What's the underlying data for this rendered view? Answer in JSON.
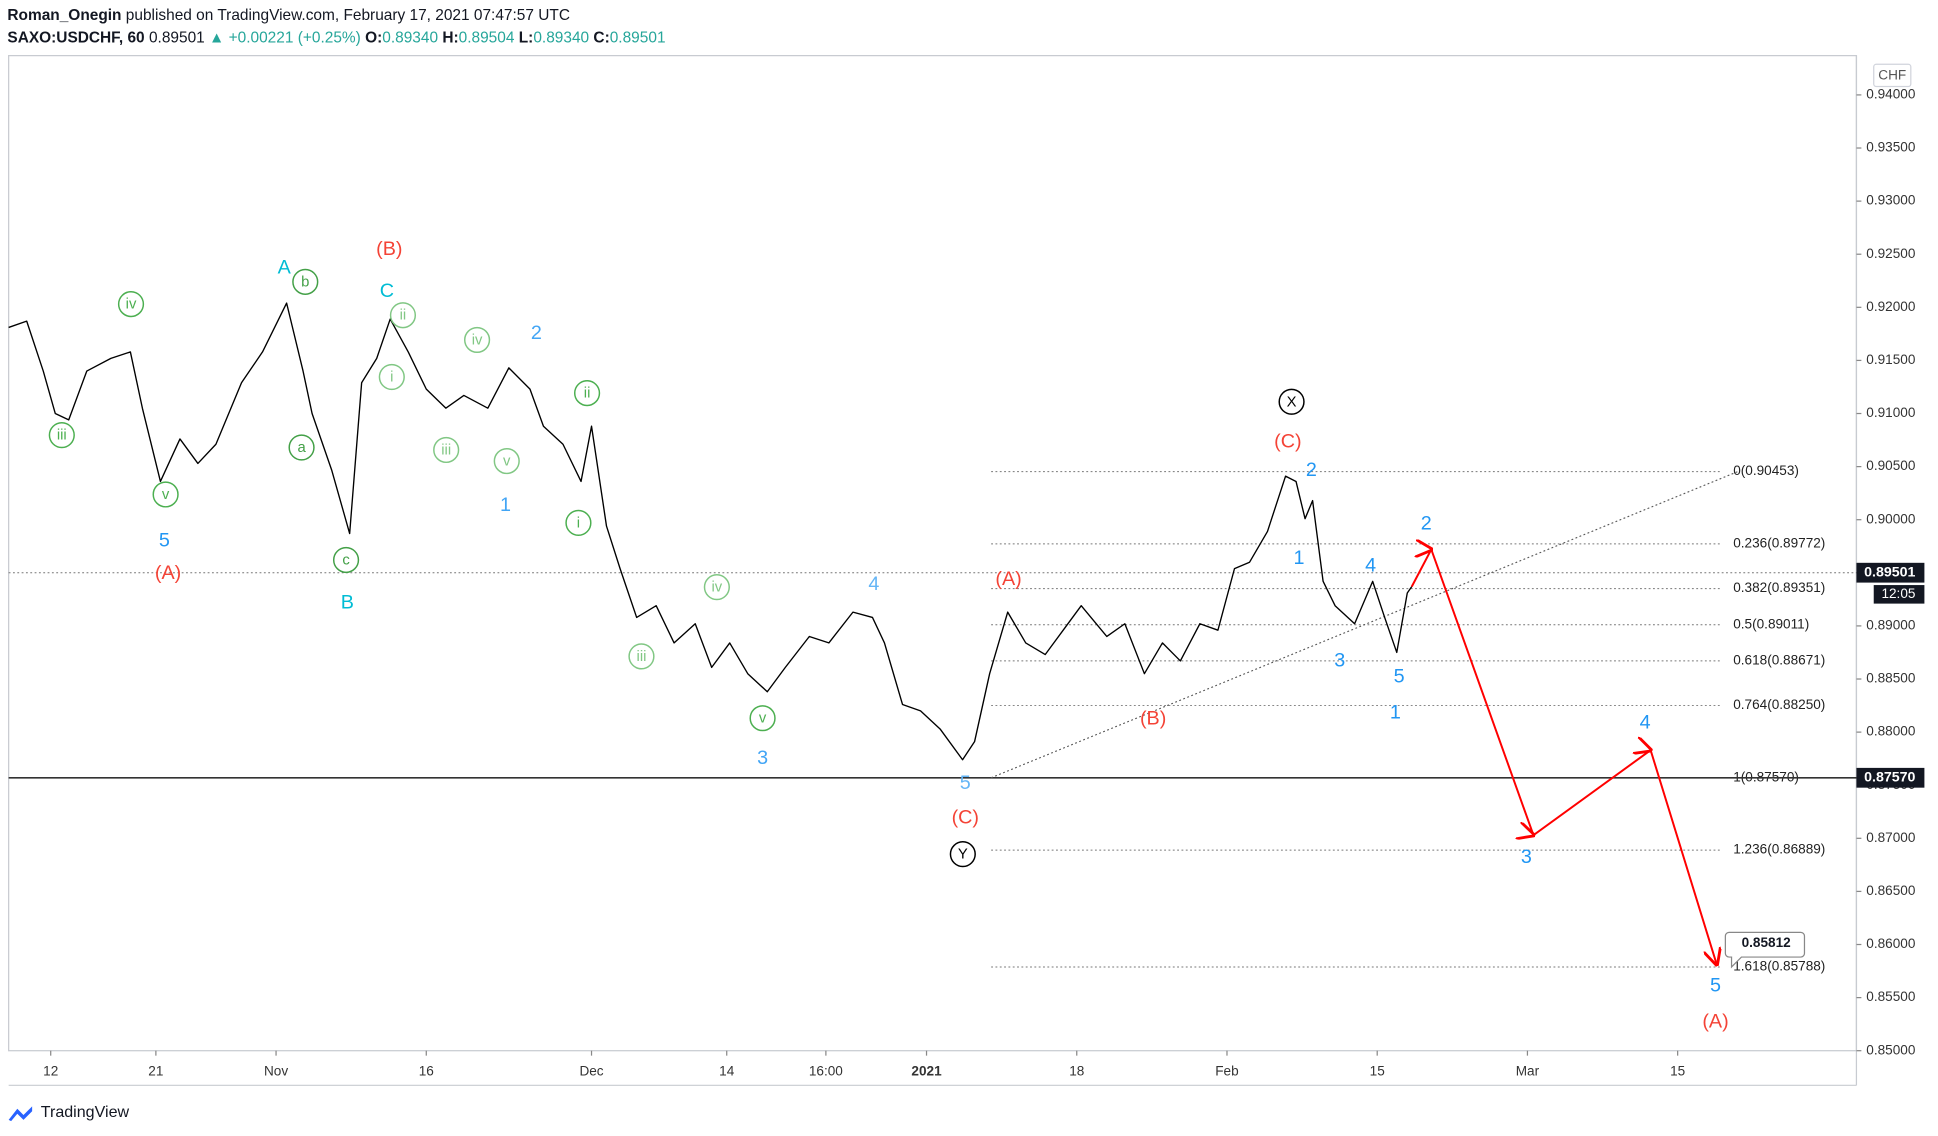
{
  "header": {
    "author": "Roman_Onegin",
    "published": "published on TradingView.com, February 17, 2021 07:47:57 UTC",
    "symbol": "SAXO:USDCHF, 60",
    "last": "0.89501",
    "change": "▲ +0.00221 (+0.25%)",
    "ohlc": [
      {
        "label": "O:",
        "value": "0.89340"
      },
      {
        "label": "H:",
        "value": "0.89504"
      },
      {
        "label": "L:",
        "value": "0.89340"
      },
      {
        "label": "C:",
        "value": "0.89501"
      }
    ]
  },
  "chart_data": {
    "type": "line",
    "color": "#000000",
    "unit": "CHF",
    "x": [
      -2.8,
      -1.6,
      -0.5,
      0.3,
      1.2,
      2.4,
      4.0,
      5.3,
      6.1,
      7.3,
      8.6,
      9.8,
      11.0,
      12.7,
      14.1,
      15.7,
      16.8,
      17.4,
      18.7,
      19.9,
      20.7,
      21.7,
      22.6,
      23.8,
      25.0,
      26.3,
      27.5,
      29.1,
      30.5,
      31.9,
      32.8,
      34.1,
      35.3,
      36.0,
      37.0,
      37.9,
      39.0,
      40.3,
      41.5,
      42.9,
      44.0,
      45.2,
      46.4,
      47.7,
      48.9,
      50.5,
      51.8,
      53.4,
      54.7,
      55.5,
      56.7,
      57.9,
      59.2,
      60.7,
      61.5,
      62.5,
      63.7,
      64.9,
      66.2,
      67.4,
      68.6,
      70.3,
      71.5,
      72.8,
      74.0,
      75.2,
      76.5,
      77.7,
      78.8,
      79.8,
      81.0,
      82.2,
      82.9,
      83.5,
      84.0,
      84.7,
      85.5,
      86.8,
      88.0,
      88.8,
      89.6,
      90.3,
      90.6
    ],
    "values": [
      0.9181,
      0.9187,
      0.914,
      0.91,
      0.9094,
      0.914,
      0.9152,
      0.9158,
      0.9105,
      0.9036,
      0.9076,
      0.9053,
      0.9071,
      0.9129,
      0.9158,
      0.9204,
      0.914,
      0.91,
      0.9047,
      0.8987,
      0.9129,
      0.9152,
      0.9189,
      0.9158,
      0.9123,
      0.9105,
      0.9117,
      0.9105,
      0.9143,
      0.9123,
      0.9088,
      0.9071,
      0.9036,
      0.9088,
      0.8994,
      0.8954,
      0.8908,
      0.8919,
      0.8884,
      0.8902,
      0.8861,
      0.8884,
      0.8855,
      0.8838,
      0.8861,
      0.889,
      0.8884,
      0.8913,
      0.8908,
      0.8884,
      0.8826,
      0.882,
      0.8803,
      0.8774,
      0.8791,
      0.8855,
      0.8913,
      0.8884,
      0.8873,
      0.8896,
      0.8919,
      0.889,
      0.8902,
      0.8855,
      0.8884,
      0.8867,
      0.8902,
      0.8896,
      0.8954,
      0.896,
      0.8989,
      0.9041,
      0.9036,
      0.9001,
      0.9018,
      0.8942,
      0.8919,
      0.8902,
      0.8942,
      0.8908,
      0.8875,
      0.8931,
      0.8937
    ],
    "xlim": [
      -2.8,
      120.2
    ],
    "xticks": [
      {
        "value": 0,
        "label": "12"
      },
      {
        "value": 7,
        "label": "21"
      },
      {
        "value": 15,
        "label": "Nov"
      },
      {
        "value": 25,
        "label": "16"
      },
      {
        "value": 36,
        "label": "Dec"
      },
      {
        "value": 45,
        "label": "14"
      },
      {
        "value": 51.6,
        "label": "16:00"
      },
      {
        "value": 58.3,
        "label": "2021"
      },
      {
        "value": 68.3,
        "label": "18"
      },
      {
        "value": 78.3,
        "label": "Feb"
      },
      {
        "value": 88.3,
        "label": "15"
      },
      {
        "value": 98.3,
        "label": "Mar"
      },
      {
        "value": 108.3,
        "label": "15"
      }
    ],
    "ylim": [
      0.85,
      0.9437
    ],
    "yticks": [
      {
        "value": 0.85,
        "label": "0.85000"
      },
      {
        "value": 0.855,
        "label": "0.85500"
      },
      {
        "value": 0.86,
        "label": "0.86000"
      },
      {
        "value": 0.865,
        "label": "0.86500"
      },
      {
        "value": 0.87,
        "label": "0.87000"
      },
      {
        "value": 0.875,
        "label": "0.87500"
      },
      {
        "value": 0.88,
        "label": "0.88000"
      },
      {
        "value": 0.885,
        "label": "0.88500"
      },
      {
        "value": 0.89,
        "label": "0.89000"
      },
      {
        "value": 0.895,
        "label": "0.89500"
      },
      {
        "value": 0.9,
        "label": "0.90000"
      },
      {
        "value": 0.905,
        "label": "0.90500"
      },
      {
        "value": 0.91,
        "label": "0.91000"
      },
      {
        "value": 0.915,
        "label": "0.91500"
      },
      {
        "value": 0.92,
        "label": "0.92000"
      },
      {
        "value": 0.925,
        "label": "0.92500"
      },
      {
        "value": 0.93,
        "label": "0.93000"
      },
      {
        "value": 0.935,
        "label": "0.93500"
      },
      {
        "value": 0.94,
        "label": "0.94000"
      }
    ],
    "price_labels": [
      {
        "value": 0.89501,
        "label": "0.89501",
        "style": "dotted"
      },
      {
        "value": 0.8757,
        "label": "0.87570",
        "style": "solid"
      }
    ],
    "countdown": "12:05",
    "fib_levels": [
      {
        "value": 0.90453,
        "label": "0(0.90453)"
      },
      {
        "value": 0.89772,
        "label": "0.236(0.89772)"
      },
      {
        "value": 0.89351,
        "label": "0.382(0.89351)"
      },
      {
        "value": 0.89011,
        "label": "0.5(0.89011)"
      },
      {
        "value": 0.88671,
        "label": "0.618(0.88671)"
      },
      {
        "value": 0.8825,
        "label": "0.764(0.88250)"
      },
      {
        "value": 0.8757,
        "label": "1(0.87570)"
      },
      {
        "value": 0.86889,
        "label": "1.236(0.86889)"
      },
      {
        "value": 0.85788,
        "label": "1.618(0.85788)"
      }
    ],
    "fib_x": [
      62.6,
      112.0
    ],
    "trend_line": {
      "x": [
        62.6,
        112.3
      ],
      "values": [
        0.8757,
        0.90453
      ]
    },
    "projection": {
      "color": "#ff0000",
      "x": [
        90.6,
        91.9,
        98.7,
        106.5,
        110.9
      ],
      "values": [
        0.8937,
        0.8972,
        0.8703,
        0.8783,
        0.85812
      ],
      "target_label": "0.85812"
    },
    "wave_labels": [
      {
        "text": "iii",
        "color": "#4caf50",
        "circled": true
      },
      {
        "text": "iv",
        "color": "#4caf50",
        "circled": true
      },
      {
        "text": "v",
        "color": "#4caf50",
        "circled": true
      },
      {
        "text": "b",
        "color": "#43a047",
        "circled": true
      },
      {
        "text": "a",
        "color": "#43a047",
        "circled": true
      },
      {
        "text": "c",
        "color": "#43a047",
        "circled": true
      },
      {
        "text": "ii",
        "color": "#81c784",
        "circled": true
      },
      {
        "text": "i",
        "color": "#81c784",
        "circled": true
      },
      {
        "text": "iv",
        "color": "#81c784",
        "circled": true
      },
      {
        "text": "iii",
        "color": "#81c784",
        "circled": true
      },
      {
        "text": "v",
        "color": "#81c784",
        "circled": true
      },
      {
        "text": "ii",
        "color": "#4caf50",
        "circled": true
      },
      {
        "text": "i",
        "color": "#4caf50",
        "circled": true
      },
      {
        "text": "iv",
        "color": "#81c784",
        "circled": true
      },
      {
        "text": "iii",
        "color": "#81c784",
        "circled": true
      },
      {
        "text": "v",
        "color": "#4caf50",
        "circled": true
      },
      {
        "text": "5",
        "color": "#2196f3",
        "circled": false
      },
      {
        "text": "1",
        "color": "#42a5f5",
        "circled": false
      },
      {
        "text": "2",
        "color": "#42a5f5",
        "circled": false
      },
      {
        "text": "4",
        "color": "#64b5f6",
        "circled": false
      },
      {
        "text": "3",
        "color": "#42a5f5",
        "circled": false
      },
      {
        "text": "5",
        "color": "#64b5f6",
        "circled": false
      },
      {
        "text": "2",
        "color": "#2196f3",
        "circled": false
      },
      {
        "text": "1",
        "color": "#2196f3",
        "circled": false
      },
      {
        "text": "4",
        "color": "#2196f3",
        "circled": false
      },
      {
        "text": "3",
        "color": "#2196f3",
        "circled": false
      },
      {
        "text": "5",
        "color": "#2196f3",
        "circled": false
      },
      {
        "text": "1",
        "color": "#2196f3",
        "circled": false
      },
      {
        "text": "2",
        "color": "#2196f3",
        "circled": false
      },
      {
        "text": "3",
        "color": "#2196f3",
        "circled": false
      },
      {
        "text": "4",
        "color": "#2196f3",
        "circled": false
      },
      {
        "text": "5",
        "color": "#2196f3",
        "circled": false
      },
      {
        "text": "A",
        "color": "#00bcd4",
        "circled": false
      },
      {
        "text": "C",
        "color": "#00bcd4",
        "circled": false
      },
      {
        "text": "B",
        "color": "#00bcd4",
        "circled": false
      },
      {
        "text": "(A)",
        "color": "#f44336",
        "circled": false
      },
      {
        "text": "(B)",
        "color": "#f44336",
        "circled": false
      },
      {
        "text": "(A)",
        "color": "#f44336",
        "circled": false
      },
      {
        "text": "(C)",
        "color": "#f44336",
        "circled": false
      },
      {
        "text": "(B)",
        "color": "#f44336",
        "circled": false
      },
      {
        "text": "(C)",
        "color": "#f44336",
        "circled": false
      },
      {
        "text": "(A)",
        "color": "#f44336",
        "circled": false
      },
      {
        "text": "X",
        "color": "#000000",
        "circled": true
      },
      {
        "text": "Y",
        "color": "#000000",
        "circled": true
      }
    ]
  },
  "footer": {
    "brand": "TradingView"
  }
}
